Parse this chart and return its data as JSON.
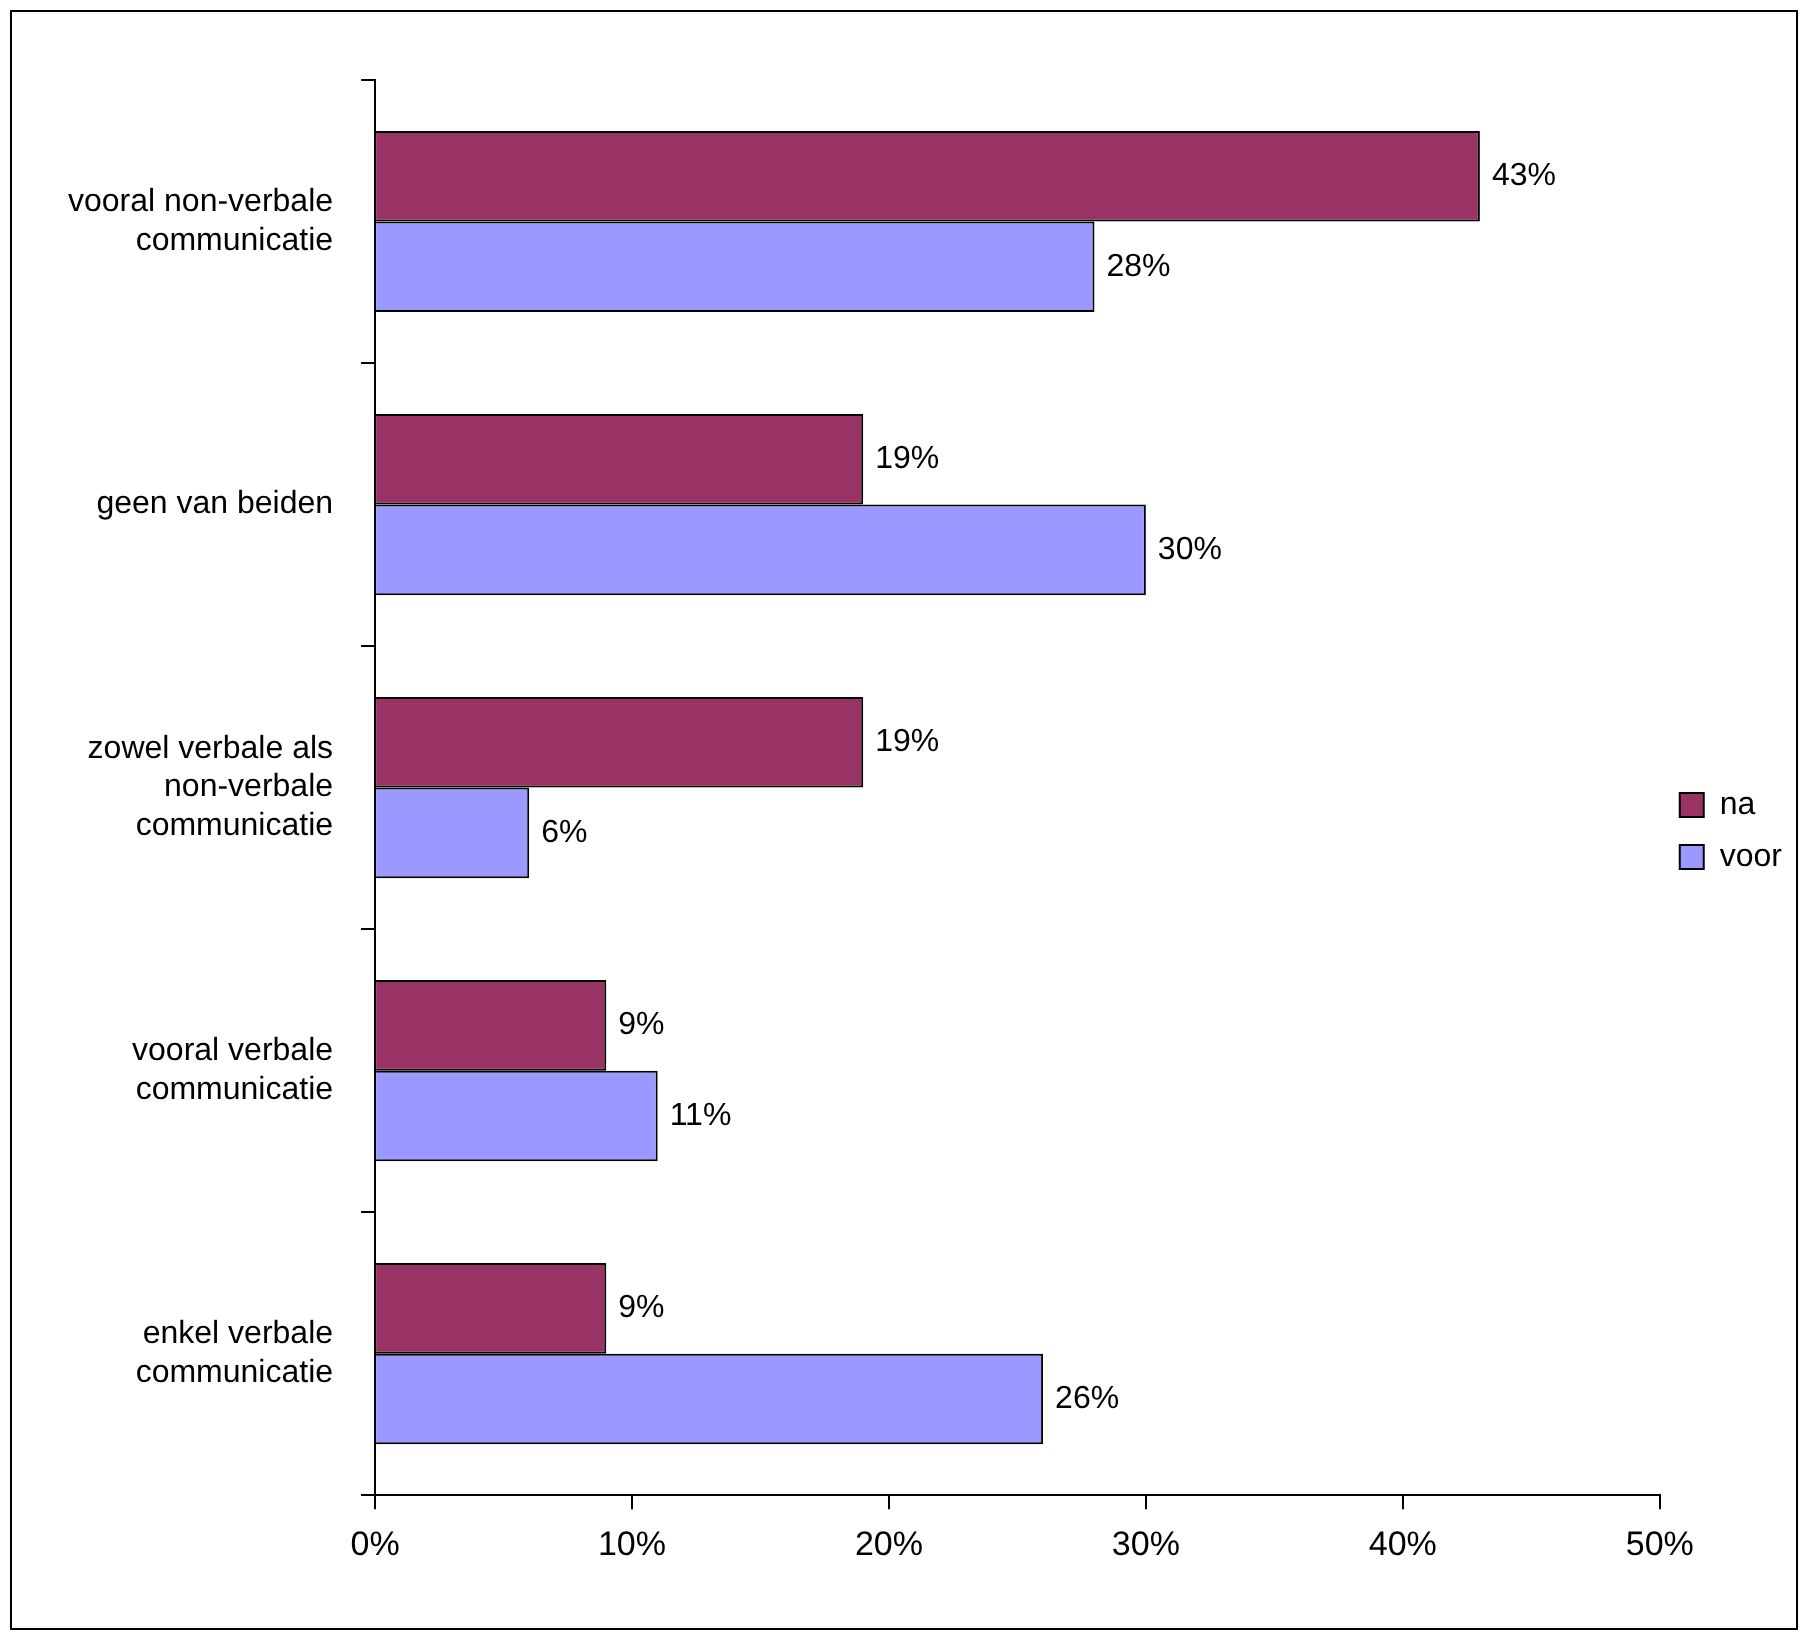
{
  "chart_data": {
    "type": "bar",
    "orientation": "horizontal",
    "categories": [
      "vooral non-verbale communicatie",
      "geen van beiden",
      "zowel verbale als non-verbale communicatie",
      "vooral verbale communicatie",
      "enkel verbale communicatie"
    ],
    "series": [
      {
        "name": "na",
        "color": "#993366",
        "values": [
          43,
          19,
          19,
          9,
          9
        ],
        "value_labels": [
          "43%",
          "19%",
          "19%",
          "9%",
          "9%"
        ]
      },
      {
        "name": "voor",
        "color": "#9999ff",
        "values": [
          28,
          30,
          6,
          11,
          26
        ],
        "value_labels": [
          "28%",
          "30%",
          "6%",
          "11%",
          "26%"
        ]
      }
    ],
    "xlim": [
      0,
      50
    ],
    "xticks": [
      {
        "value": 0,
        "label": "0%"
      },
      {
        "value": 10,
        "label": "10%"
      },
      {
        "value": 20,
        "label": "20%"
      },
      {
        "value": 30,
        "label": "30%"
      },
      {
        "value": 40,
        "label": "40%"
      },
      {
        "value": 50,
        "label": "50%"
      }
    ],
    "grid": false,
    "legend": "right"
  }
}
